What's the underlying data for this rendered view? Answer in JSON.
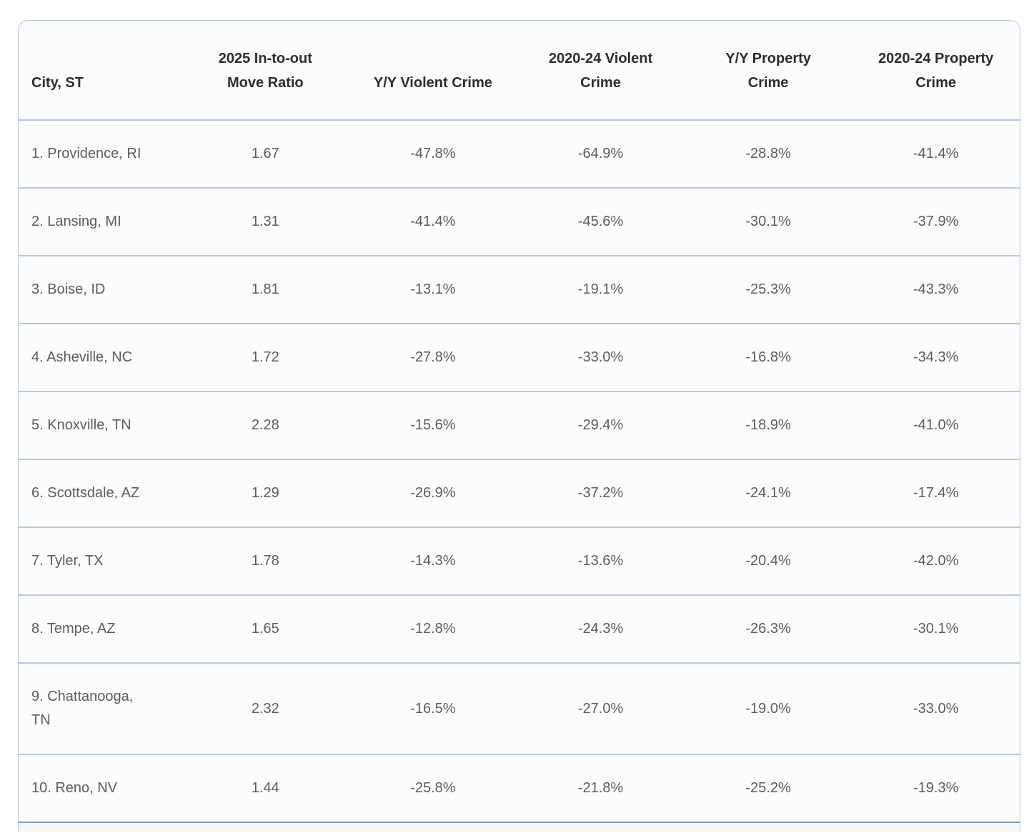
{
  "colors": {
    "page_bg": "#ffffff",
    "card_border": "#b0c6e3",
    "row_divider": "#b6c8e4",
    "strong_divider": "#7a9bcd",
    "header_text": "#2c2d30",
    "cell_text": "#5a5c61",
    "row_bg": "#fcfcfd",
    "partial_row_bg": "#faf6f6"
  },
  "chart_data": {
    "type": "table",
    "columns": [
      "City, ST",
      "2025 In-to-out\nMove Ratio",
      "Y/Y Violent Crime",
      "2020-24 Violent\nCrime",
      "Y/Y Property\nCrime",
      "2020-24 Property\nCrime"
    ],
    "column_keys": [
      "city-st",
      "move-ratio-2025",
      "yy-violent-crime",
      "violent-crime-2020-24",
      "yy-property-crime",
      "property-crime-2020-24"
    ],
    "rows": [
      [
        "1. Providence, RI",
        "1.67",
        "-47.8%",
        "-64.9%",
        "-28.8%",
        "-41.4%"
      ],
      [
        "2. Lansing, MI",
        "1.31",
        "-41.4%",
        "-45.6%",
        "-30.1%",
        "-37.9%"
      ],
      [
        "3. Boise, ID",
        "1.81",
        "-13.1%",
        "-19.1%",
        "-25.3%",
        "-43.3%"
      ],
      [
        "4. Asheville, NC",
        "1.72",
        "-27.8%",
        "-33.0%",
        "-16.8%",
        "-34.3%"
      ],
      [
        "5. Knoxville, TN",
        "2.28",
        "-15.6%",
        "-29.4%",
        "-18.9%",
        "-41.0%"
      ],
      [
        "6. Scottsdale, AZ",
        "1.29",
        "-26.9%",
        "-37.2%",
        "-24.1%",
        "-17.4%"
      ],
      [
        "7. Tyler, TX",
        "1.78",
        "-14.3%",
        "-13.6%",
        "-20.4%",
        "-42.0%"
      ],
      [
        "8. Tempe, AZ",
        "1.65",
        "-12.8%",
        "-24.3%",
        "-26.3%",
        "-30.1%"
      ],
      [
        "9. Chattanooga,\nTN",
        "2.32",
        "-16.5%",
        "-27.0%",
        "-19.0%",
        "-33.0%"
      ],
      [
        "10. Reno, NV",
        "1.44",
        "-25.8%",
        "-21.8%",
        "-25.2%",
        "-19.3%"
      ]
    ]
  }
}
